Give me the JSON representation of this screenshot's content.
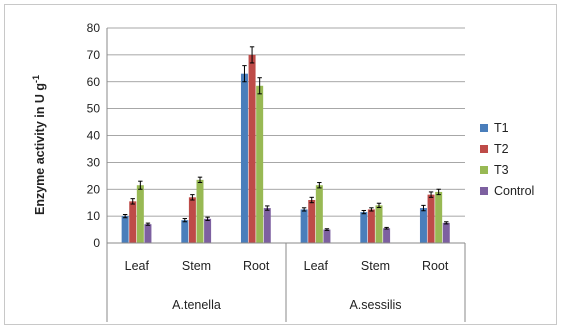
{
  "chart_data": {
    "type": "bar",
    "ylabel": "Enzyme activity in U g",
    "ylabel_superscript": "-1",
    "ylim": [
      0,
      80
    ],
    "yticks": [
      0,
      10,
      20,
      30,
      40,
      50,
      60,
      70,
      80
    ],
    "grid": true,
    "legend_position": "right",
    "groups": [
      {
        "name": "A.tenella",
        "categories": [
          "Leaf",
          "Stem",
          "Root"
        ]
      },
      {
        "name": "A.sessilis",
        "categories": [
          "Leaf",
          "Stem",
          "Root"
        ]
      }
    ],
    "series": [
      {
        "name": "T1",
        "color": "#4a7ebb",
        "values": [
          10,
          8.5,
          63,
          12.5,
          11.5,
          13
        ],
        "errors": [
          0.6,
          0.6,
          3,
          0.6,
          0.6,
          1
        ]
      },
      {
        "name": "T2",
        "color": "#be4b48",
        "values": [
          15.5,
          17,
          70,
          16,
          12.5,
          18
        ],
        "errors": [
          1,
          1,
          3,
          1,
          0.6,
          1
        ]
      },
      {
        "name": "T3",
        "color": "#98b954",
        "values": [
          21.5,
          23.5,
          58.5,
          21.5,
          14,
          19
        ],
        "errors": [
          1.5,
          1,
          3,
          1,
          0.8,
          1
        ]
      },
      {
        "name": "Control",
        "color": "#7d60a0",
        "values": [
          7,
          9,
          13,
          5,
          5.5,
          7.5
        ],
        "errors": [
          0.4,
          0.6,
          0.8,
          0.3,
          0.3,
          0.4
        ]
      }
    ]
  }
}
